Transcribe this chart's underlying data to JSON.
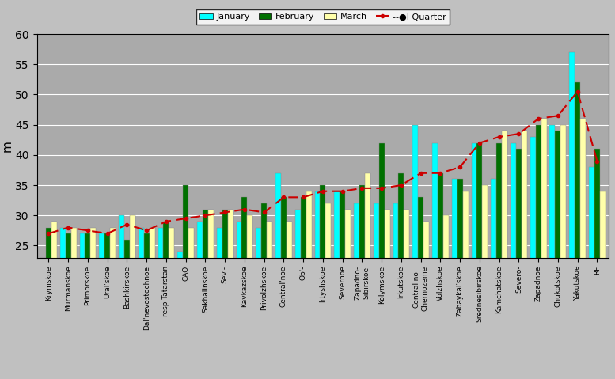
{
  "categories": [
    "Krymskoe",
    "Murmanskoe",
    "Primorskoe",
    "Ural'skoe",
    "Bashkirskoe",
    "Dal'nevostochnoe",
    "resp Tatarstan",
    "CAO",
    "Sakhalinskoe",
    "Sev.-",
    "Kavkazskoe",
    "Privolzhskoe",
    "Central'noe",
    "Ob'-",
    "Irtyshskoe",
    "Severnoe",
    "Zapadno-\nSibirskoe",
    "Kolymskoe",
    "Irkutskoe",
    "Central'no-\nChernozeme",
    "Volzhskoe",
    "Zabaykal'skoe",
    "Srednesibirskoe",
    "Kamchatskoe",
    "Severo-",
    "Zapadnoe",
    "Chukotskoe",
    "Yakutskoe",
    "RF"
  ],
  "january": [
    23,
    28,
    27,
    27,
    30,
    28,
    28,
    24,
    29,
    28,
    29,
    28,
    37,
    31,
    34,
    34,
    32,
    32,
    32,
    45,
    42,
    36,
    42,
    36,
    42,
    43,
    45,
    57,
    38
  ],
  "february": [
    28,
    27,
    27,
    27,
    26,
    27,
    29,
    35,
    31,
    31,
    33,
    32,
    33,
    33,
    35,
    34,
    35,
    42,
    37,
    33,
    37,
    36,
    42,
    42,
    41,
    45,
    44,
    52,
    41
  ],
  "march": [
    29,
    28,
    28,
    28,
    30,
    28,
    28,
    28,
    31,
    31,
    30,
    29,
    29,
    34,
    32,
    31,
    37,
    31,
    31,
    29,
    30,
    34,
    35,
    44,
    44,
    46,
    45,
    46,
    34
  ],
  "quarter": [
    27,
    28,
    27.5,
    27,
    28.5,
    27.5,
    29,
    29.5,
    30,
    30.5,
    31,
    30.5,
    33,
    33,
    34,
    34,
    34.5,
    34.5,
    35,
    37,
    37,
    38,
    42,
    43,
    43.5,
    46,
    46.5,
    50.5,
    39
  ],
  "jan_color": "#00FFFF",
  "feb_color": "#007000",
  "mar_color": "#FFFFAA",
  "quarter_color": "#CC0000",
  "background_color": "#C0C0C0",
  "plot_bg_color": "#AAAAAA",
  "ylabel": "m",
  "ylim": [
    23,
    60
  ],
  "yticks": [
    25,
    30,
    35,
    40,
    45,
    50,
    55,
    60
  ],
  "bar_width": 0.28
}
